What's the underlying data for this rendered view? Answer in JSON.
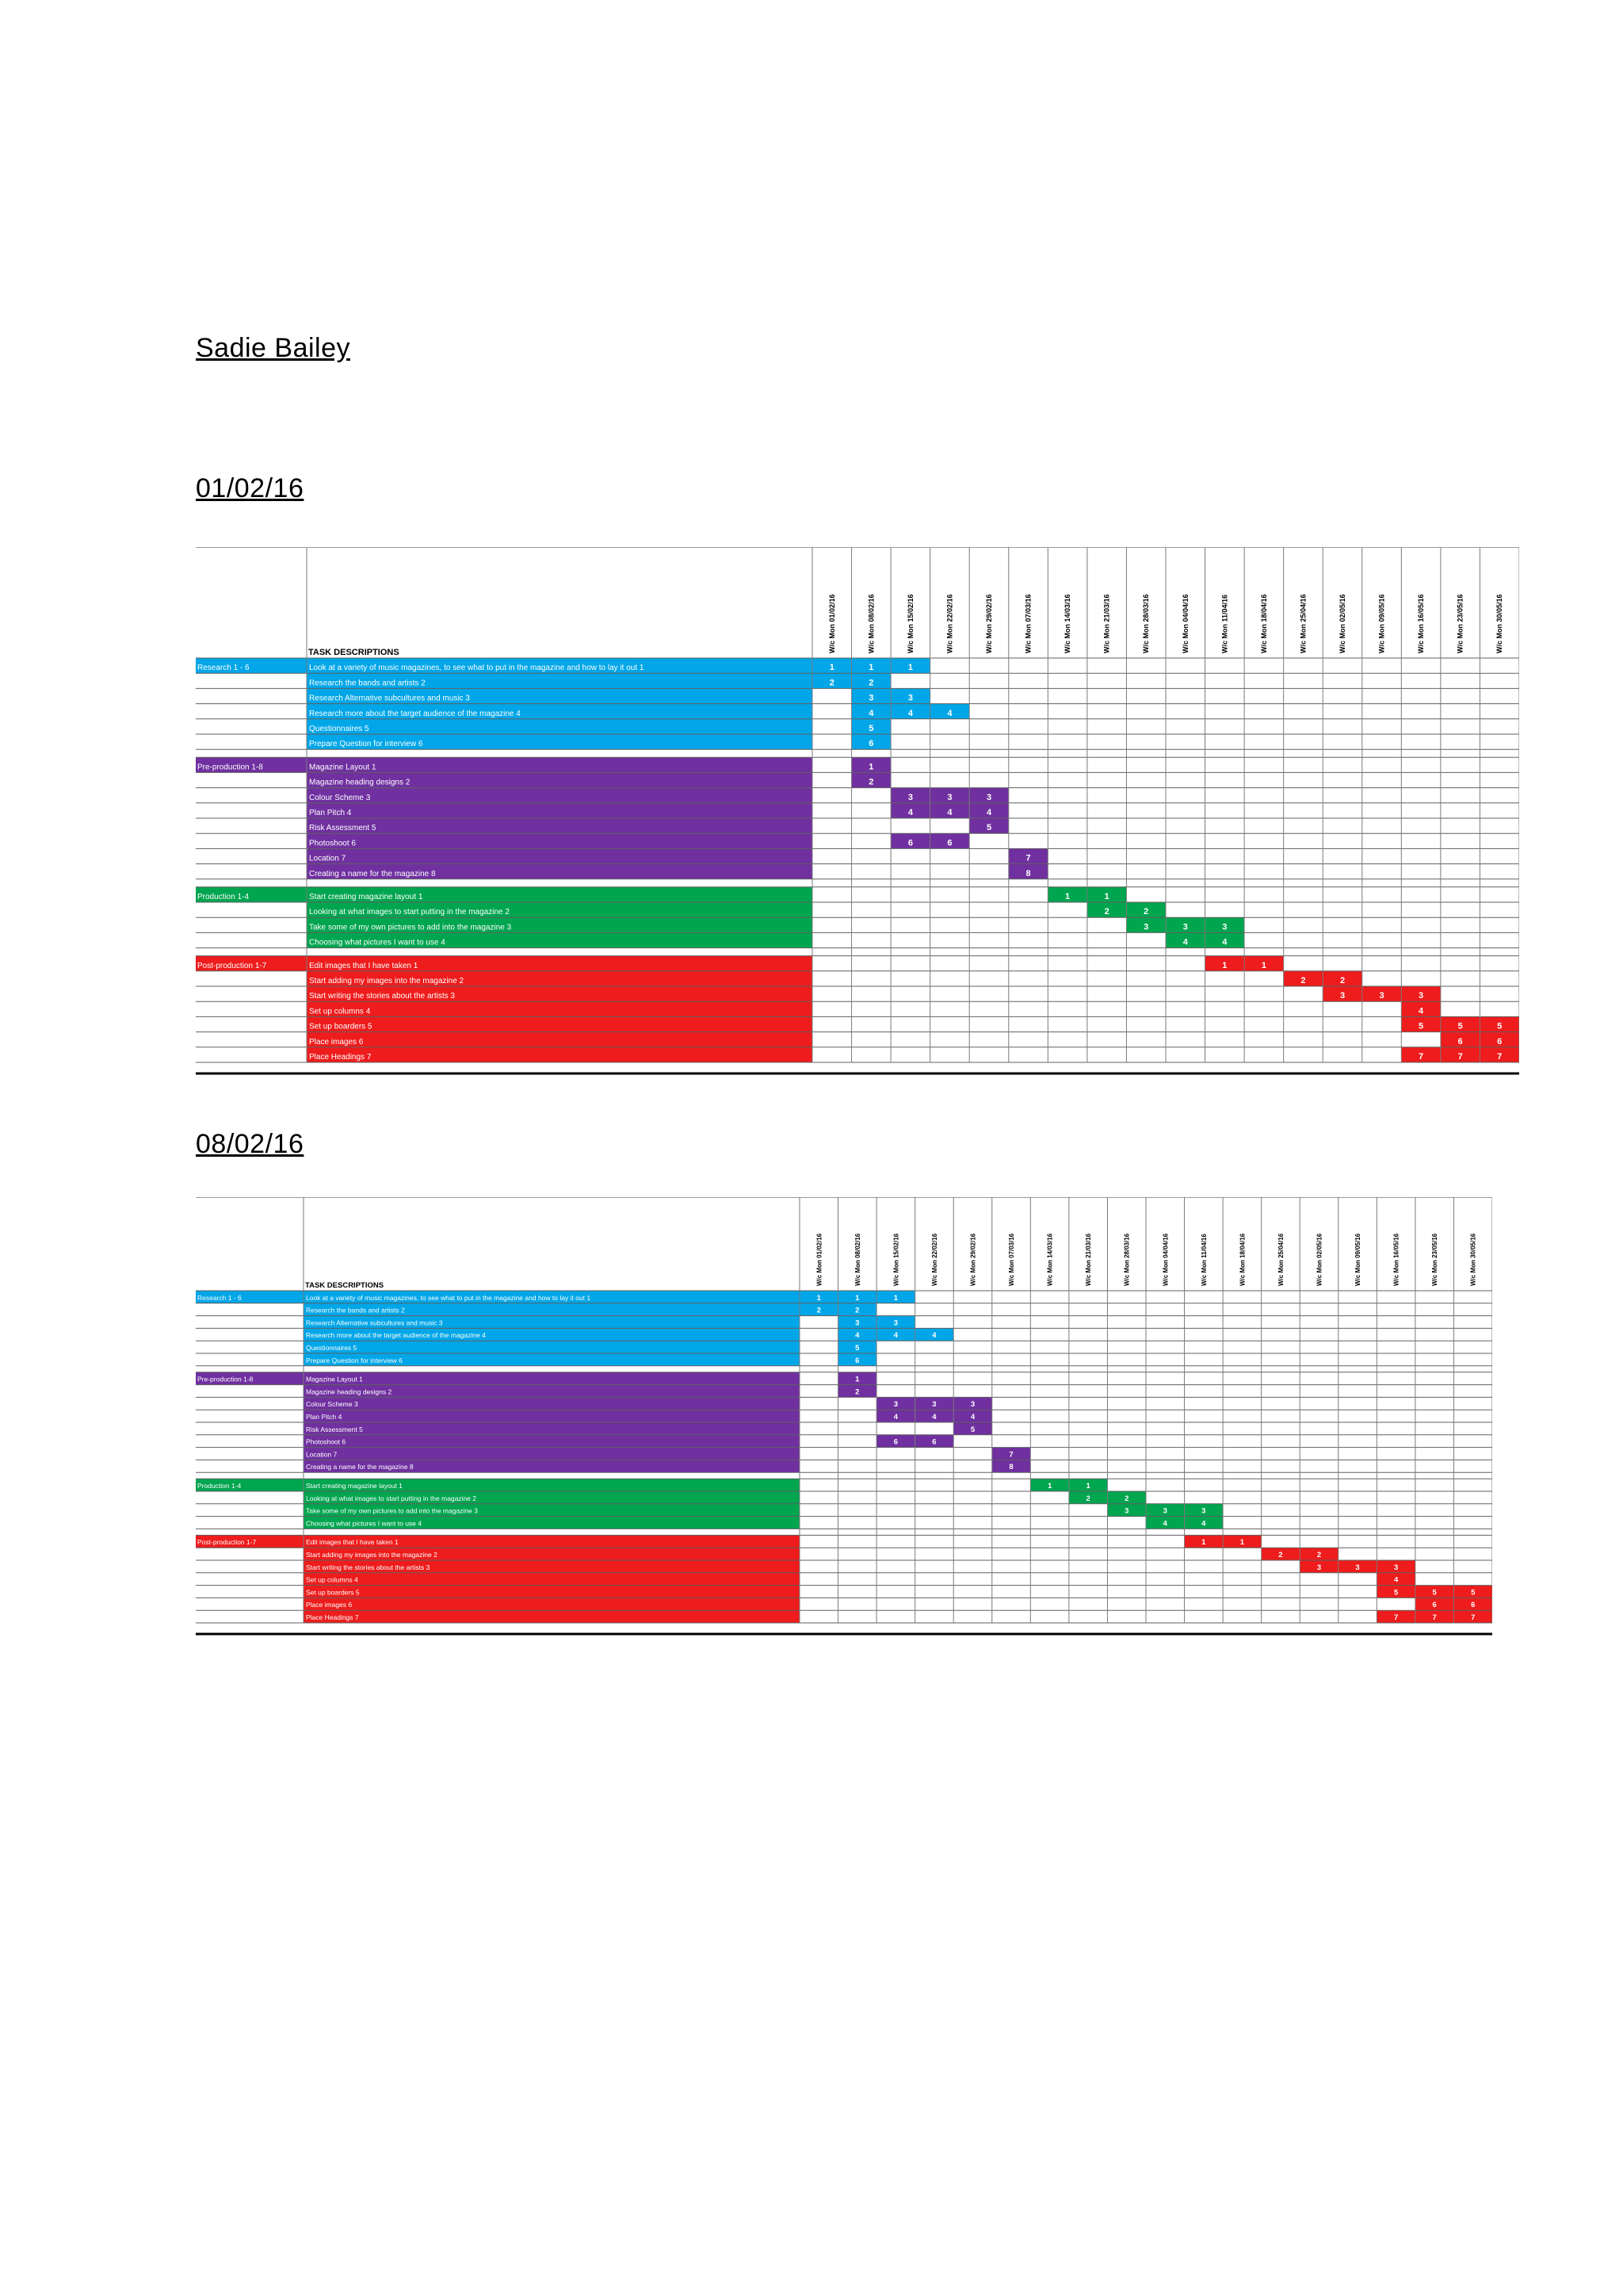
{
  "document": {
    "author": "Sadie Bailey",
    "charts": [
      {
        "date": "01/02/16"
      },
      {
        "date": "08/02/16"
      }
    ]
  },
  "gantt": {
    "header_label": "TASK DESCRIPTIONS",
    "weeks": [
      "W/c Mon 01/02/16",
      "W/c Mon 08/02/16",
      "W/c Mon 15/02/16",
      "W/c Mon 22/02/16",
      "W/c Mon 29/02/16",
      "W/c Mon 07/03/16",
      "W/c Mon 14/03/16",
      "W/c Mon 21/03/16",
      "W/c Mon 28/03/16",
      "W/c Mon 04/04/16",
      "W/c Mon 11/04/16",
      "W/c Mon 18/04/16",
      "W/c Mon 25/04/16",
      "W/c Mon 02/05/16",
      "W/c Mon 09/05/16",
      "W/c Mon 16/05/16",
      "W/c Mon 23/05/16",
      "W/c Mon 30/05/16"
    ],
    "sections": [
      {
        "name": "Research 1 - 6",
        "color": "#00a6e8",
        "tasks": [
          {
            "label": "Look at a variety of music magazines, to see what to put in the magazine and how to lay it out 1",
            "cells": [
              [
                0,
                "1"
              ],
              [
                1,
                "1"
              ],
              [
                2,
                "1"
              ]
            ]
          },
          {
            "label": "Research the bands and artists 2",
            "cells": [
              [
                0,
                "2"
              ],
              [
                1,
                "2"
              ]
            ]
          },
          {
            "label": "Research Alternative subcultures and music 3",
            "cells": [
              [
                1,
                "3"
              ],
              [
                2,
                "3"
              ]
            ]
          },
          {
            "label": "Research more about the target audience of the magazine 4",
            "cells": [
              [
                1,
                "4"
              ],
              [
                2,
                "4"
              ],
              [
                3,
                "4"
              ]
            ]
          },
          {
            "label": "Questionnaires 5",
            "cells": [
              [
                1,
                "5"
              ]
            ]
          },
          {
            "label": "Prepare Question for interview 6",
            "cells": [
              [
                1,
                "6"
              ]
            ]
          }
        ]
      },
      {
        "name": "Pre-production 1-8",
        "color": "#7030a0",
        "tasks": [
          {
            "label": "Magazine Layout 1",
            "cells": [
              [
                1,
                "1"
              ]
            ]
          },
          {
            "label": "Magazine heading designs 2",
            "cells": [
              [
                1,
                "2"
              ]
            ]
          },
          {
            "label": "Colour Scheme 3",
            "cells": [
              [
                2,
                "3"
              ],
              [
                3,
                "3"
              ],
              [
                4,
                "3"
              ]
            ]
          },
          {
            "label": "Plan Pitch 4",
            "cells": [
              [
                2,
                "4"
              ],
              [
                3,
                "4"
              ],
              [
                4,
                "4"
              ]
            ]
          },
          {
            "label": "Risk Assessment 5",
            "cells": [
              [
                4,
                "5"
              ]
            ]
          },
          {
            "label": "Photoshoot 6",
            "cells": [
              [
                2,
                "6"
              ],
              [
                3,
                "6"
              ]
            ]
          },
          {
            "label": "Location 7",
            "cells": [
              [
                5,
                "7"
              ]
            ]
          },
          {
            "label": "Creating a name for the magazine 8",
            "cells": [
              [
                5,
                "8"
              ]
            ]
          }
        ]
      },
      {
        "name": "Production 1-4",
        "color": "#00a54f",
        "tasks": [
          {
            "label": "Start creating magazine layout 1",
            "cells": [
              [
                6,
                "1"
              ],
              [
                7,
                "1"
              ]
            ]
          },
          {
            "label": "Looking at what images to start putting in the magazine 2",
            "cells": [
              [
                7,
                "2"
              ],
              [
                8,
                "2"
              ]
            ]
          },
          {
            "label": "Take some of my own pictures to add into the magazine 3",
            "cells": [
              [
                8,
                "3"
              ],
              [
                9,
                "3"
              ],
              [
                10,
                "3"
              ]
            ]
          },
          {
            "label": "Choosing what pictures I want to use 4",
            "cells": [
              [
                9,
                "4"
              ],
              [
                10,
                "4"
              ]
            ]
          }
        ]
      },
      {
        "name": "Post-production 1-7",
        "color": "#ee1c1c",
        "tasks": [
          {
            "label": "Edit images that I have taken 1",
            "cells": [
              [
                10,
                "1"
              ],
              [
                11,
                "1"
              ]
            ]
          },
          {
            "label": "Start adding my images into the magazine 2",
            "cells": [
              [
                12,
                "2"
              ],
              [
                13,
                "2"
              ]
            ]
          },
          {
            "label": "Start writing the stories about the artists 3",
            "cells": [
              [
                13,
                "3"
              ],
              [
                14,
                "3"
              ],
              [
                15,
                "3"
              ]
            ]
          },
          {
            "label": "Set up columns 4",
            "cells": [
              [
                15,
                "4"
              ]
            ]
          },
          {
            "label": "Set up boarders 5",
            "cells": [
              [
                15,
                "5"
              ],
              [
                16,
                "5"
              ],
              [
                17,
                "5"
              ]
            ]
          },
          {
            "label": "Place images 6",
            "cells": [
              [
                16,
                "6"
              ],
              [
                17,
                "6"
              ]
            ]
          },
          {
            "label": "Place Headings 7",
            "cells": [
              [
                15,
                "7"
              ],
              [
                16,
                "7"
              ],
              [
                17,
                "7"
              ]
            ]
          }
        ]
      }
    ]
  }
}
